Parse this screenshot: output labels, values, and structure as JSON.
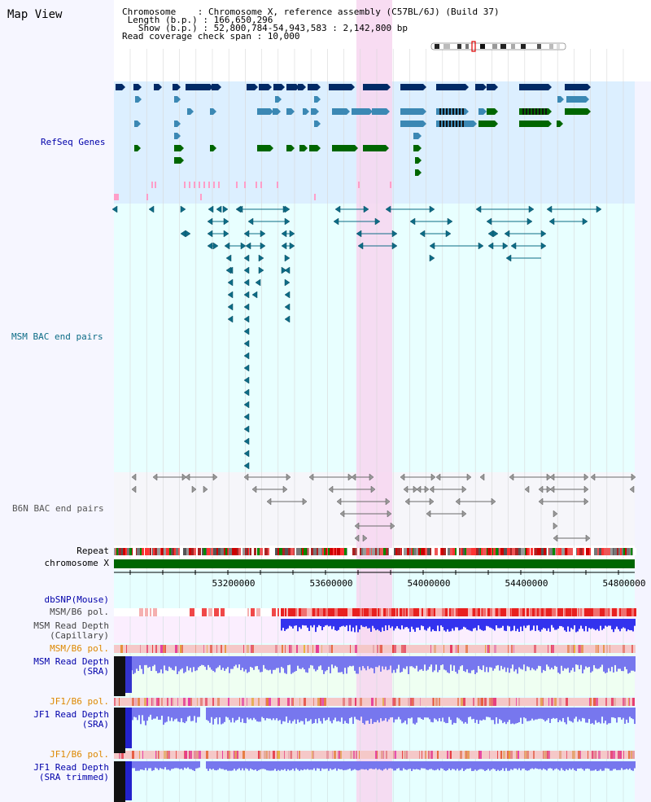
{
  "header": {
    "title": "Map View",
    "info_lines": [
      "Chromosome    : Chromosome X, reference assembly (C57BL/6J) (Build 37)",
      " Length (b.p.) : 166,650,296",
      "   Show (b.p.) : 52,800,784-54,943,583 : 2,142,800 bp",
      "Read coverage check span : 10,000"
    ]
  },
  "tracks": {
    "refseq": "RefSeq Genes",
    "msm_bac": "MSM BAC end pairs",
    "b6n_bac": "B6N BAC end pairs",
    "repeat": "Repeat",
    "chromosome": "chromosome X",
    "dbsnp": "dbSNP(Mouse)",
    "msm_b6_pol_1": "MSM/B6 pol.",
    "msm_depth_cap_1": "MSM Read Depth",
    "msm_depth_cap_2": "(Capillary)",
    "msm_b6_pol_2": "MSM/B6 pol.",
    "msm_depth_sra_1": "MSM Read Depth",
    "msm_depth_sra_2": "(SRA)",
    "jf1_b6_pol_1": "JF1/B6 pol.",
    "jf1_depth_sra_1": "JF1 Read Depth",
    "jf1_depth_sra_2": "(SRA)",
    "jf1_b6_pol_2": "JF1/B6 pol.",
    "jf1_depth_trim_1": "JF1 Read Depth",
    "jf1_depth_trim_2": "(SRA trimmed)"
  },
  "axis": {
    "ticks": [
      "53200000",
      "53600000",
      "54000000",
      "54400000",
      "54800000"
    ]
  },
  "colors": {
    "refseq_bg": "#dcefff",
    "msm_bac_bg": "#e8ffff",
    "b6n_bac_bg": "#f6f6fa",
    "highlight": "#f7d6f0",
    "gene_dark": "#002a66",
    "gene_mid": "#3b88b4",
    "gene_green": "#006600",
    "bac_teal": "#0d6c86",
    "bac_grey": "#6b6b6b",
    "chromosome": "#006600",
    "depth_blue": "#3333ee",
    "label_blue": "#0000aa",
    "label_orange": "#dd8800",
    "label_grey": "#444444"
  }
}
